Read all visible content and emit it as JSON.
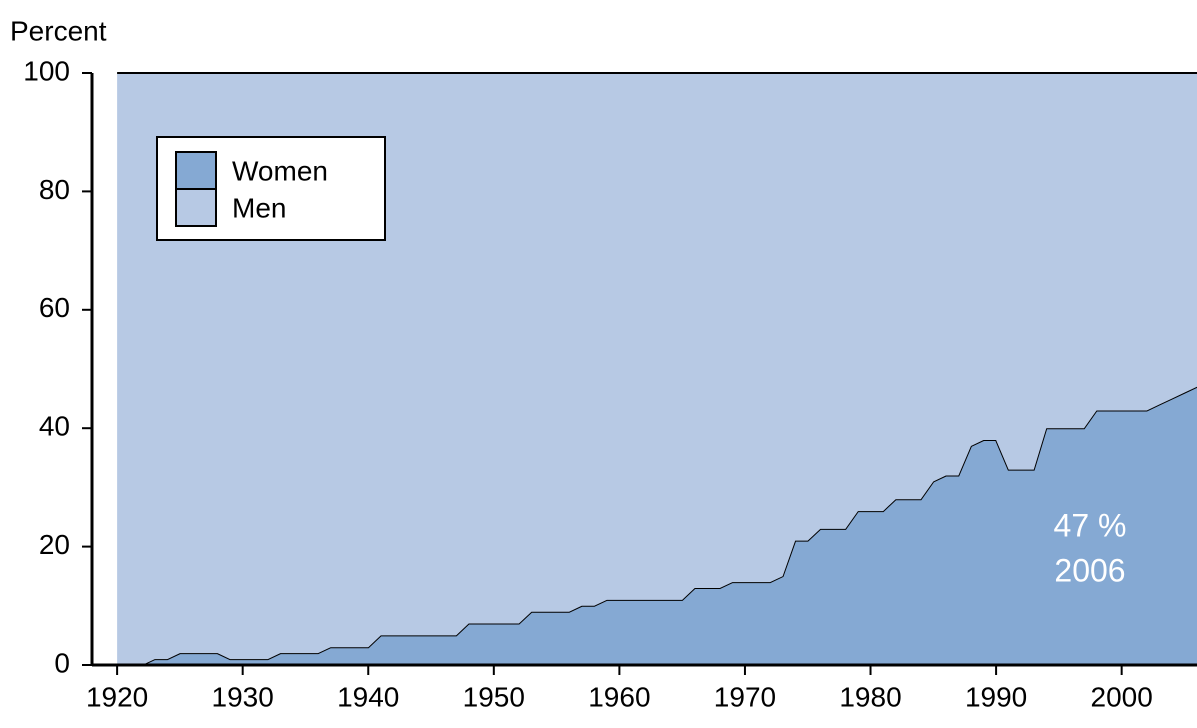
{
  "chart_data": {
    "type": "stacked_area",
    "y_label": "Percent",
    "x": [
      1920,
      1921,
      1922,
      1923,
      1924,
      1925,
      1926,
      1927,
      1928,
      1929,
      1930,
      1931,
      1932,
      1933,
      1934,
      1935,
      1936,
      1937,
      1938,
      1939,
      1940,
      1941,
      1942,
      1943,
      1944,
      1945,
      1946,
      1947,
      1948,
      1949,
      1950,
      1951,
      1952,
      1953,
      1954,
      1955,
      1956,
      1957,
      1958,
      1959,
      1960,
      1961,
      1962,
      1963,
      1964,
      1965,
      1966,
      1967,
      1968,
      1969,
      1970,
      1971,
      1972,
      1973,
      1974,
      1975,
      1976,
      1977,
      1978,
      1979,
      1980,
      1981,
      1982,
      1983,
      1984,
      1985,
      1986,
      1987,
      1988,
      1989,
      1990,
      1991,
      1992,
      1993,
      1994,
      1995,
      1996,
      1997,
      1998,
      1999,
      2000,
      2001,
      2002,
      2003,
      2004,
      2005,
      2006
    ],
    "series": [
      {
        "name": "Women",
        "color": "#85a9d3",
        "values": [
          0,
          0,
          0,
          1,
          1,
          2,
          2,
          2,
          2,
          1,
          1,
          1,
          1,
          2,
          2,
          2,
          2,
          3,
          3,
          3,
          3,
          5,
          5,
          5,
          5,
          5,
          5,
          5,
          7,
          7,
          7,
          7,
          7,
          9,
          9,
          9,
          9,
          10,
          10,
          11,
          11,
          11,
          11,
          11,
          11,
          11,
          13,
          13,
          13,
          14,
          14,
          14,
          14,
          15,
          21,
          21,
          23,
          23,
          23,
          26,
          26,
          26,
          28,
          28,
          28,
          31,
          32,
          32,
          37,
          38,
          38,
          33,
          33,
          33,
          40,
          40,
          40,
          40,
          43,
          43,
          43,
          43,
          43,
          44,
          45,
          46,
          47
        ]
      },
      {
        "name": "Men",
        "color": "#b7c9e4",
        "values": [
          100,
          100,
          100,
          99,
          99,
          98,
          98,
          98,
          98,
          99,
          99,
          99,
          99,
          98,
          98,
          98,
          98,
          97,
          97,
          97,
          97,
          95,
          95,
          95,
          95,
          95,
          95,
          95,
          93,
          93,
          93,
          93,
          93,
          91,
          91,
          91,
          91,
          90,
          90,
          89,
          89,
          89,
          89,
          89,
          89,
          89,
          87,
          87,
          87,
          86,
          86,
          86,
          86,
          85,
          79,
          79,
          77,
          77,
          77,
          74,
          74,
          74,
          72,
          72,
          72,
          69,
          68,
          68,
          63,
          62,
          62,
          67,
          67,
          67,
          60,
          60,
          60,
          60,
          57,
          57,
          57,
          57,
          57,
          56,
          55,
          54,
          53
        ]
      }
    ],
    "xlim": [
      1918,
      2006
    ],
    "xticks": [
      1920,
      1930,
      1940,
      1950,
      1960,
      1970,
      1980,
      1990,
      2000
    ],
    "ylim": [
      0,
      100
    ],
    "yticks": [
      0,
      20,
      40,
      60,
      80,
      100
    ],
    "legend": "upper left",
    "annotations": [
      "47 %",
      "2006"
    ]
  }
}
